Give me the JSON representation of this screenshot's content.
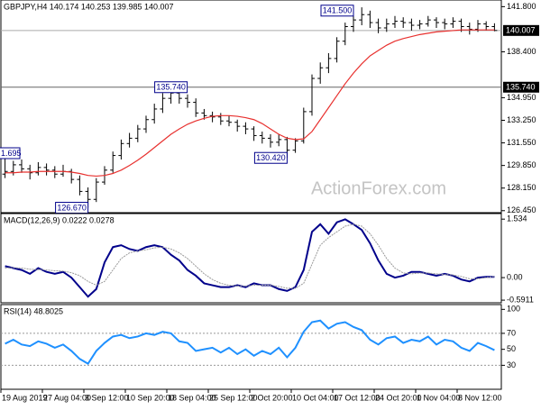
{
  "chart_data": [
    {
      "type": "ohlc",
      "title": "GBPJPY,H4  140.174 140.253 139.985 140.007",
      "watermark": "ActionForex.com",
      "color": "#000000",
      "open": [
        129.2,
        129.4,
        129.9,
        129.6,
        129.3,
        129.7,
        129.5,
        129.2,
        129.4,
        128.8,
        127.9,
        127.3,
        128.6,
        129.5,
        130.6,
        131.5,
        131.9,
        132.6,
        133.3,
        134.1,
        134.9,
        135.3,
        134.9,
        134.6,
        133.8,
        133.6,
        133.5,
        133.2,
        133.1,
        132.8,
        132.6,
        132.1,
        131.9,
        131.6,
        131.8,
        131.0,
        131.7,
        133.9,
        136.4,
        137.2,
        137.9,
        139.2,
        140.3,
        140.8,
        141.2,
        140.6,
        140.2,
        140.5,
        140.7,
        140.6,
        140.4,
        140.5,
        140.8,
        140.6,
        140.5,
        140.7,
        140.3,
        140.1,
        140.5,
        140.3
      ],
      "high": [
        130.9,
        130.2,
        130.3,
        129.9,
        130.1,
        130.0,
        129.8,
        129.9,
        129.6,
        129.1,
        128.2,
        128.9,
        129.8,
        130.9,
        131.8,
        132.3,
        132.9,
        133.6,
        134.5,
        135.3,
        135.74,
        135.6,
        135.2,
        134.9,
        134.1,
        133.9,
        133.8,
        133.6,
        133.3,
        133.1,
        132.8,
        132.4,
        132.2,
        132.2,
        132.0,
        131.9,
        134.2,
        136.7,
        137.6,
        138.3,
        139.5,
        140.6,
        141.5,
        141.75,
        141.5,
        140.9,
        140.9,
        141.1,
        141.0,
        140.9,
        140.8,
        141.1,
        141.0,
        140.9,
        141.0,
        140.9,
        140.6,
        140.8,
        140.7,
        140.55
      ],
      "low": [
        128.9,
        129.1,
        129.3,
        128.8,
        129.1,
        129.1,
        128.9,
        129.0,
        128.5,
        127.6,
        126.67,
        127.1,
        128.4,
        129.3,
        130.3,
        131.2,
        131.6,
        132.3,
        133.0,
        133.8,
        134.5,
        134.5,
        134.2,
        133.5,
        133.3,
        133.1,
        132.9,
        132.8,
        132.4,
        132.2,
        131.7,
        131.5,
        131.2,
        131.3,
        130.42,
        130.8,
        131.5,
        133.6,
        136.0,
        136.8,
        137.6,
        138.9,
        139.9,
        140.4,
        140.2,
        139.8,
        139.9,
        140.2,
        140.2,
        140.0,
        140.1,
        140.3,
        140.2,
        140.1,
        140.2,
        139.9,
        139.7,
        139.9,
        140.0,
        139.95
      ],
      "close": [
        129.4,
        129.9,
        129.6,
        129.3,
        129.7,
        129.5,
        129.2,
        129.4,
        128.8,
        127.9,
        127.3,
        128.6,
        129.5,
        130.6,
        131.5,
        131.9,
        132.6,
        133.3,
        134.1,
        134.9,
        135.3,
        134.9,
        134.6,
        133.8,
        133.6,
        133.5,
        133.2,
        133.1,
        132.8,
        132.6,
        132.1,
        131.9,
        131.6,
        131.8,
        131.0,
        131.7,
        133.9,
        136.4,
        137.2,
        137.9,
        139.2,
        140.3,
        140.8,
        141.2,
        140.6,
        140.2,
        140.5,
        140.7,
        140.6,
        140.4,
        140.5,
        140.8,
        140.6,
        140.5,
        140.7,
        140.3,
        140.1,
        140.5,
        140.3,
        140.007
      ],
      "ma": {
        "color": "#e8312f",
        "values": [
          129.3,
          129.3,
          129.35,
          129.35,
          129.4,
          129.4,
          129.4,
          129.4,
          129.35,
          129.25,
          129.1,
          129.05,
          129.1,
          129.25,
          129.5,
          129.85,
          130.25,
          130.7,
          131.2,
          131.7,
          132.2,
          132.6,
          132.95,
          133.2,
          133.4,
          133.55,
          133.6,
          133.6,
          133.55,
          133.45,
          133.3,
          133.0,
          132.6,
          132.2,
          131.9,
          131.8,
          131.85,
          132.4,
          133.3,
          134.2,
          135.1,
          136.0,
          136.8,
          137.5,
          138.1,
          138.5,
          138.9,
          139.2,
          139.4,
          139.55,
          139.7,
          139.8,
          139.9,
          139.95,
          140.0,
          140.05,
          140.05,
          140.05,
          140.05,
          140.05
        ]
      },
      "ylim": [
        126.3,
        142.3
      ],
      "yticks": [
        {
          "value": 126.45,
          "label": "126.450"
        },
        {
          "value": 128.15,
          "label": "128.150"
        },
        {
          "value": 129.85,
          "label": "129.850"
        },
        {
          "value": 131.55,
          "label": "131.550"
        },
        {
          "value": 133.25,
          "label": "133.250"
        },
        {
          "value": 134.95,
          "label": "134.950"
        },
        {
          "value": 138.4,
          "label": "138.400"
        },
        {
          "value": 141.8,
          "label": "141.800"
        }
      ],
      "current_price": {
        "value": 140.007,
        "label": "140.007"
      },
      "level": {
        "value": 135.74,
        "label": "135.740"
      },
      "annotations": [
        {
          "value": 141.5,
          "label": "141.500"
        },
        {
          "value": 135.74,
          "label": "135.740"
        },
        {
          "value": 130.42,
          "label": "130.420"
        },
        {
          "value": 126.67,
          "label": "126.670"
        }
      ],
      "cut_label": "1.695"
    },
    {
      "type": "line",
      "title": "MACD(12,26,9) 0.0222 0.0278",
      "series": [
        {
          "color": "#00008b",
          "style": "solid",
          "values": [
            0.3,
            0.25,
            0.2,
            0.1,
            0.25,
            0.15,
            0.1,
            0.15,
            0.0,
            -0.25,
            -0.5,
            -0.3,
            0.4,
            0.8,
            0.85,
            0.75,
            0.7,
            0.8,
            0.85,
            0.8,
            0.6,
            0.45,
            0.2,
            0.05,
            -0.15,
            -0.2,
            -0.25,
            -0.25,
            -0.2,
            -0.25,
            -0.15,
            -0.2,
            -0.2,
            -0.3,
            -0.35,
            -0.25,
            0.2,
            1.2,
            1.4,
            1.15,
            1.45,
            1.53,
            1.4,
            1.25,
            0.9,
            0.45,
            0.1,
            0.0,
            0.05,
            0.15,
            0.15,
            0.1,
            0.05,
            0.1,
            0.05,
            -0.05,
            -0.1,
            0.0,
            0.02,
            0.02
          ]
        },
        {
          "color": "#9a9a9a",
          "style": "dotted",
          "values": [
            0.25,
            0.26,
            0.25,
            0.22,
            0.21,
            0.2,
            0.18,
            0.17,
            0.13,
            0.05,
            -0.1,
            -0.2,
            -0.1,
            0.2,
            0.5,
            0.65,
            0.7,
            0.73,
            0.78,
            0.8,
            0.75,
            0.65,
            0.5,
            0.3,
            0.1,
            -0.05,
            -0.15,
            -0.2,
            -0.22,
            -0.22,
            -0.2,
            -0.2,
            -0.2,
            -0.23,
            -0.28,
            -0.28,
            -0.15,
            0.35,
            0.85,
            1.05,
            1.2,
            1.35,
            1.4,
            1.35,
            1.15,
            0.85,
            0.5,
            0.25,
            0.12,
            0.1,
            0.12,
            0.12,
            0.1,
            0.08,
            0.07,
            0.03,
            -0.03,
            -0.03,
            0.0,
            0.03
          ]
        }
      ],
      "ylim": [
        -0.66,
        1.68
      ],
      "yticks": [
        1.534,
        {
          "value": 0,
          "label": "0.00"
        },
        -0.5911
      ]
    },
    {
      "type": "line",
      "title": "RSI(14) 48.8025",
      "series": [
        {
          "color": "#1e90ff",
          "style": "solid",
          "values": [
            57,
            62,
            56,
            54,
            60,
            57,
            52,
            56,
            48,
            38,
            32,
            48,
            58,
            66,
            68,
            64,
            66,
            70,
            68,
            72,
            70,
            60,
            58,
            48,
            50,
            52,
            46,
            52,
            44,
            50,
            42,
            48,
            44,
            52,
            40,
            52,
            72,
            84,
            86,
            76,
            82,
            84,
            78,
            74,
            62,
            56,
            64,
            66,
            58,
            62,
            60,
            66,
            56,
            62,
            60,
            52,
            48,
            58,
            54,
            49
          ]
        }
      ],
      "ylim": [
        0,
        106
      ],
      "yticks": [
        30,
        50,
        70,
        100
      ],
      "dotted_levels": [
        30,
        70
      ],
      "xticks": [
        {
          "value": 0,
          "label": "19 Aug 2019"
        },
        {
          "value": 5,
          "label": "27 Aug 04:00"
        },
        {
          "value": 10,
          "label": "3 Sep 12:00"
        },
        {
          "value": 15,
          "label": "10 Sep 20:00"
        },
        {
          "value": 20,
          "label": "18 Sep 04:00"
        },
        {
          "value": 25,
          "label": "25 Sep 12:00"
        },
        {
          "value": 30,
          "label": "2 Oct 20:00"
        },
        {
          "value": 35,
          "label": "10 Oct 04:00"
        },
        {
          "value": 40,
          "label": "17 Oct 12:00"
        },
        {
          "value": 45,
          "label": "24 Oct 20:00"
        },
        {
          "value": 50,
          "label": "1 Nov 04:00"
        },
        {
          "value": 55,
          "label": "8 Nov 12:00"
        }
      ]
    }
  ]
}
